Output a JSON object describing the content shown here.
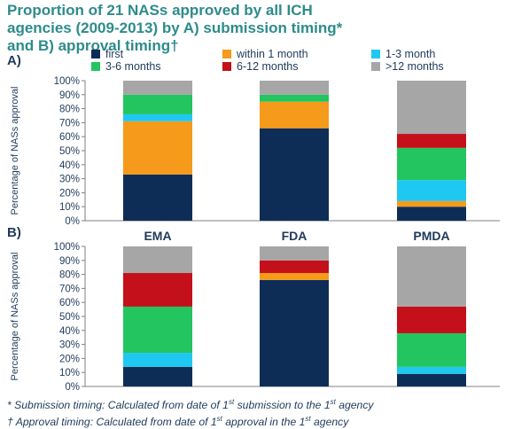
{
  "title": {
    "line1": "Proportion of 21 NASs approved by all ICH",
    "line2": "agencies (2009-2013) by A) submission timing*",
    "line3": "and B) approval timing†"
  },
  "panels": {
    "a_label": "A)",
    "b_label": "B)"
  },
  "chart_data": [
    {
      "type": "bar",
      "stacked": true,
      "panel": "A)",
      "categories": [
        "EMA",
        "FDA",
        "PMDA"
      ],
      "ylabel": "Percentage of NASs approval",
      "ylim": [
        0,
        100
      ],
      "yticks": [
        "0%",
        "10%",
        "20%",
        "30%",
        "40%",
        "50%",
        "60%",
        "70%",
        "80%",
        "90%",
        "100%"
      ],
      "legend": {
        "position": "top"
      },
      "series": [
        {
          "name": "first",
          "color": "#0d2d57",
          "values": [
            33,
            66,
            10
          ]
        },
        {
          "name": "within 1 month",
          "color": "#f59a1b",
          "values": [
            38,
            19,
            4
          ]
        },
        {
          "name": "1-3 month",
          "color": "#1ec8f0",
          "values": [
            5,
            0,
            15
          ]
        },
        {
          "name": "3-6 months",
          "color": "#22c560",
          "values": [
            14,
            5,
            23
          ]
        },
        {
          "name": "6-12 months",
          "color": "#c4101a",
          "values": [
            0,
            0,
            10
          ]
        },
        {
          "name": ">12 months",
          "color": "#a6a6a6",
          "values": [
            10,
            10,
            38
          ]
        }
      ]
    },
    {
      "type": "bar",
      "stacked": true,
      "panel": "B)",
      "categories": [
        "EMA",
        "FDA",
        "PMDA"
      ],
      "ylabel": "Percentage of NASs approval",
      "ylim": [
        0,
        100
      ],
      "yticks": [
        "0%",
        "10%",
        "20%",
        "30%",
        "40%",
        "50%",
        "60%",
        "70%",
        "80%",
        "90%",
        "100%"
      ],
      "series": [
        {
          "name": "first",
          "color": "#0d2d57",
          "values": [
            14,
            76,
            9
          ]
        },
        {
          "name": "within 1 month",
          "color": "#f59a1b",
          "values": [
            0,
            5,
            0
          ]
        },
        {
          "name": "1-3 month",
          "color": "#1ec8f0",
          "values": [
            10,
            0,
            5
          ]
        },
        {
          "name": "3-6 months",
          "color": "#22c560",
          "values": [
            33,
            0,
            24
          ]
        },
        {
          "name": "6-12 months",
          "color": "#c4101a",
          "values": [
            24,
            9,
            19
          ]
        },
        {
          "name": ">12 months",
          "color": "#a6a6a6",
          "values": [
            19,
            10,
            43
          ]
        }
      ]
    }
  ],
  "footnotes": {
    "sub_a": "* Submission timing: Calculated from date of 1",
    "sub_b": " submission to the 1",
    "sub_c": " agency",
    "app_a": "† Approval timing: Calculated from date of 1",
    "app_b": " approval in the 1",
    "app_c": " agency",
    "st": "st"
  }
}
